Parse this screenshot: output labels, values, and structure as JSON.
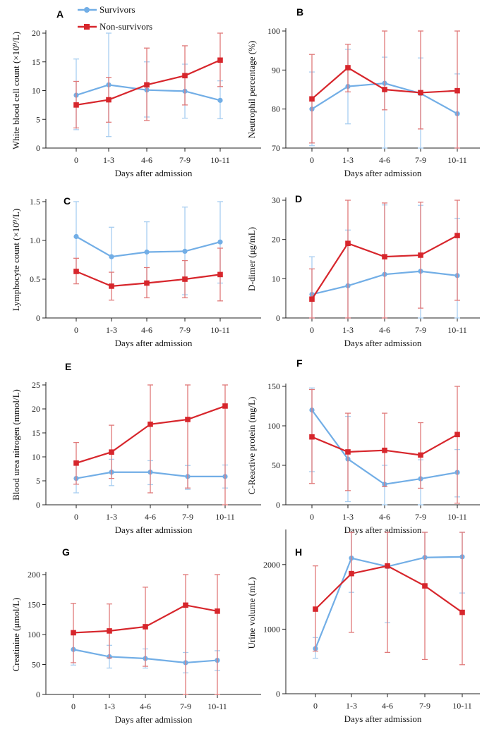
{
  "legend": {
    "survivors": "Survivors",
    "nonsurvivors": "Non-survivors",
    "colors": {
      "survivors": "#72aee6",
      "nonsurvivors": "#d7262c",
      "survivors_err": "#a8cef0",
      "nonsurvivors_err": "#e07a7a"
    }
  },
  "chart_data": [
    {
      "type": "line",
      "panel": "A",
      "ylabel": "White blood cell count (×10⁹/L)",
      "xlabel": "Days after admission",
      "categories": [
        "0",
        "1-3",
        "4-6",
        "7-9",
        "10-11"
      ],
      "yticks": [
        0,
        5,
        10,
        15,
        20
      ],
      "ylim": [
        0,
        20
      ],
      "series": [
        {
          "name": "Survivors",
          "values": [
            9.2,
            11.0,
            10.1,
            9.9,
            8.3
          ],
          "err_low": [
            3.2,
            2.0,
            5.4,
            5.2,
            5.1
          ],
          "err_high": [
            15.5,
            20.0,
            15.0,
            14.6,
            11.7
          ]
        },
        {
          "name": "Non-survivors",
          "values": [
            7.5,
            8.4,
            11.0,
            12.6,
            15.3
          ],
          "err_low": [
            3.5,
            4.5,
            4.8,
            7.5,
            10.7
          ],
          "err_high": [
            11.6,
            12.3,
            17.4,
            17.8,
            20.0
          ]
        }
      ]
    },
    {
      "type": "line",
      "panel": "B",
      "ylabel": "Neutrophil percentage (%)",
      "xlabel": "Days after admission",
      "categories": [
        "0",
        "1-3",
        "4-6",
        "7-9",
        "10-11"
      ],
      "yticks": [
        70,
        80,
        90,
        100
      ],
      "ylim": [
        70,
        100
      ],
      "series": [
        {
          "name": "Survivors",
          "values": [
            80.0,
            85.8,
            86.6,
            84.0,
            78.8
          ],
          "err_low": [
            70.6,
            76.2,
            70.0,
            70.0,
            70.0
          ],
          "err_high": [
            89.5,
            95.3,
            93.3,
            93.1,
            89.0
          ]
        },
        {
          "name": "Non-survivors",
          "values": [
            82.6,
            90.6,
            85.0,
            84.2,
            84.7
          ],
          "err_low": [
            71.3,
            84.4,
            79.8,
            74.9,
            70.0
          ],
          "err_high": [
            94.0,
            96.6,
            100,
            100,
            100
          ]
        }
      ]
    },
    {
      "type": "line",
      "panel": "C",
      "ylabel": "Lymphocyte count (×10⁹/L)",
      "xlabel": "Days after admission",
      "categories": [
        "0",
        "1-3",
        "4-6",
        "7-9",
        "10-11"
      ],
      "yticks": [
        0,
        0.5,
        1.0,
        1.5
      ],
      "ytick_labels": [
        "0",
        "0.5",
        "1.0",
        "1.5"
      ],
      "ylim": [
        0,
        1.5
      ],
      "series": [
        {
          "name": "Survivors",
          "values": [
            1.05,
            0.79,
            0.85,
            0.86,
            0.98
          ],
          "err_low": [
            0.6,
            0.4,
            0.45,
            0.3,
            0.45
          ],
          "err_high": [
            1.5,
            1.17,
            1.24,
            1.43,
            1.5
          ]
        },
        {
          "name": "Non-survivors",
          "values": [
            0.6,
            0.41,
            0.45,
            0.5,
            0.56
          ],
          "err_low": [
            0.44,
            0.23,
            0.26,
            0.26,
            0.22
          ],
          "err_high": [
            0.77,
            0.59,
            0.65,
            0.74,
            0.9
          ]
        }
      ]
    },
    {
      "type": "line",
      "panel": "D",
      "ylabel": "D-dimer (μg/mL)",
      "xlabel": "Days after admission",
      "categories": [
        "0",
        "1-3",
        "4-6",
        "7-9",
        "10-11"
      ],
      "yticks": [
        0,
        10,
        20,
        30
      ],
      "ylim": [
        0,
        30
      ],
      "series": [
        {
          "name": "Survivors",
          "values": [
            6.0,
            8.2,
            11.1,
            11.9,
            10.8
          ],
          "err_low": [
            0,
            0,
            0,
            0,
            0
          ],
          "err_high": [
            15.6,
            22.4,
            28.8,
            28.7,
            25.4
          ]
        },
        {
          "name": "Non-survivors",
          "values": [
            4.8,
            19.0,
            15.6,
            16.0,
            21.0
          ],
          "err_low": [
            0,
            0,
            0,
            2.5,
            4.5
          ],
          "err_high": [
            12.5,
            30,
            29.3,
            29.5,
            30
          ]
        }
      ]
    },
    {
      "type": "line",
      "panel": "E",
      "ylabel": "Blood urea nitrogen (mmol/L)",
      "xlabel": "Days after admission",
      "categories": [
        "0",
        "1-3",
        "4-6",
        "7-9",
        "10-11"
      ],
      "yticks": [
        0,
        5,
        10,
        15,
        20,
        25
      ],
      "ylim": [
        0,
        25
      ],
      "series": [
        {
          "name": "Survivors",
          "values": [
            5.5,
            6.8,
            6.8,
            5.9,
            5.9
          ],
          "err_low": [
            2.5,
            4.0,
            4.2,
            3.2,
            3.5
          ],
          "err_high": [
            9.0,
            9.5,
            9.2,
            8.2,
            8.3
          ]
        },
        {
          "name": "Non-survivors",
          "values": [
            8.7,
            11.0,
            16.8,
            17.8,
            20.6
          ],
          "err_low": [
            4.3,
            5.5,
            2.5,
            3.5,
            0
          ],
          "err_high": [
            13.0,
            16.6,
            25,
            25,
            25
          ]
        }
      ]
    },
    {
      "type": "line",
      "panel": "F",
      "ylabel": "C-Reactive protein (mg/L)",
      "xlabel": "Days after admission",
      "categories": [
        "0",
        "1-3",
        "4-6",
        "7-9",
        "10-11"
      ],
      "yticks": [
        0,
        50,
        100,
        150
      ],
      "ylim": [
        0,
        150
      ],
      "series": [
        {
          "name": "Survivors",
          "values": [
            120,
            58,
            26,
            33,
            41
          ],
          "err_low": [
            42,
            4,
            0,
            0,
            10
          ],
          "err_high": [
            148,
            112,
            50,
            57,
            70
          ]
        },
        {
          "name": "Non-survivors",
          "values": [
            86,
            67,
            69,
            63,
            89
          ],
          "err_low": [
            27,
            18,
            23,
            21,
            2
          ],
          "err_high": [
            146,
            116,
            116,
            104,
            150
          ]
        }
      ]
    },
    {
      "type": "line",
      "panel": "G",
      "ylabel": "Creatinine (μmol/L)",
      "xlabel": "Days after admission",
      "categories": [
        "0",
        "1-3",
        "4-6",
        "7-9",
        "10-11"
      ],
      "yticks": [
        0,
        50,
        100,
        150,
        200
      ],
      "ylim": [
        0,
        200
      ],
      "series": [
        {
          "name": "Survivors",
          "values": [
            75,
            63,
            60,
            53,
            57
          ],
          "err_low": [
            49,
            44,
            44,
            36,
            40
          ],
          "err_high": [
            101,
            82,
            76,
            70,
            73
          ]
        },
        {
          "name": "Non-survivors",
          "values": [
            103,
            106,
            113,
            149,
            139
          ],
          "err_low": [
            53,
            61,
            47,
            0,
            0
          ],
          "err_high": [
            152,
            151,
            179,
            200,
            200
          ]
        }
      ]
    },
    {
      "type": "line",
      "panel": "H",
      "ylabel": "Urine volume (mL)",
      "xlabel": "Days after admission",
      "categories": [
        "0",
        "1-3",
        "4-6",
        "7-9",
        "10-11"
      ],
      "yticks": [
        0,
        1000,
        2000
      ],
      "ylim": [
        0,
        2500
      ],
      "series": [
        {
          "name": "Survivors",
          "values": [
            700,
            2100,
            1970,
            2110,
            2120
          ],
          "err_low": [
            550,
            1570,
            1100,
            1680,
            1560
          ],
          "err_high": [
            870,
            2500,
            2500,
            2500,
            2500
          ]
        },
        {
          "name": "Non-survivors",
          "values": [
            1310,
            1860,
            1980,
            1670,
            1260
          ],
          "err_low": [
            660,
            950,
            640,
            530,
            450
          ],
          "err_high": [
            1980,
            2500,
            2500,
            2500,
            2500
          ]
        }
      ]
    }
  ]
}
